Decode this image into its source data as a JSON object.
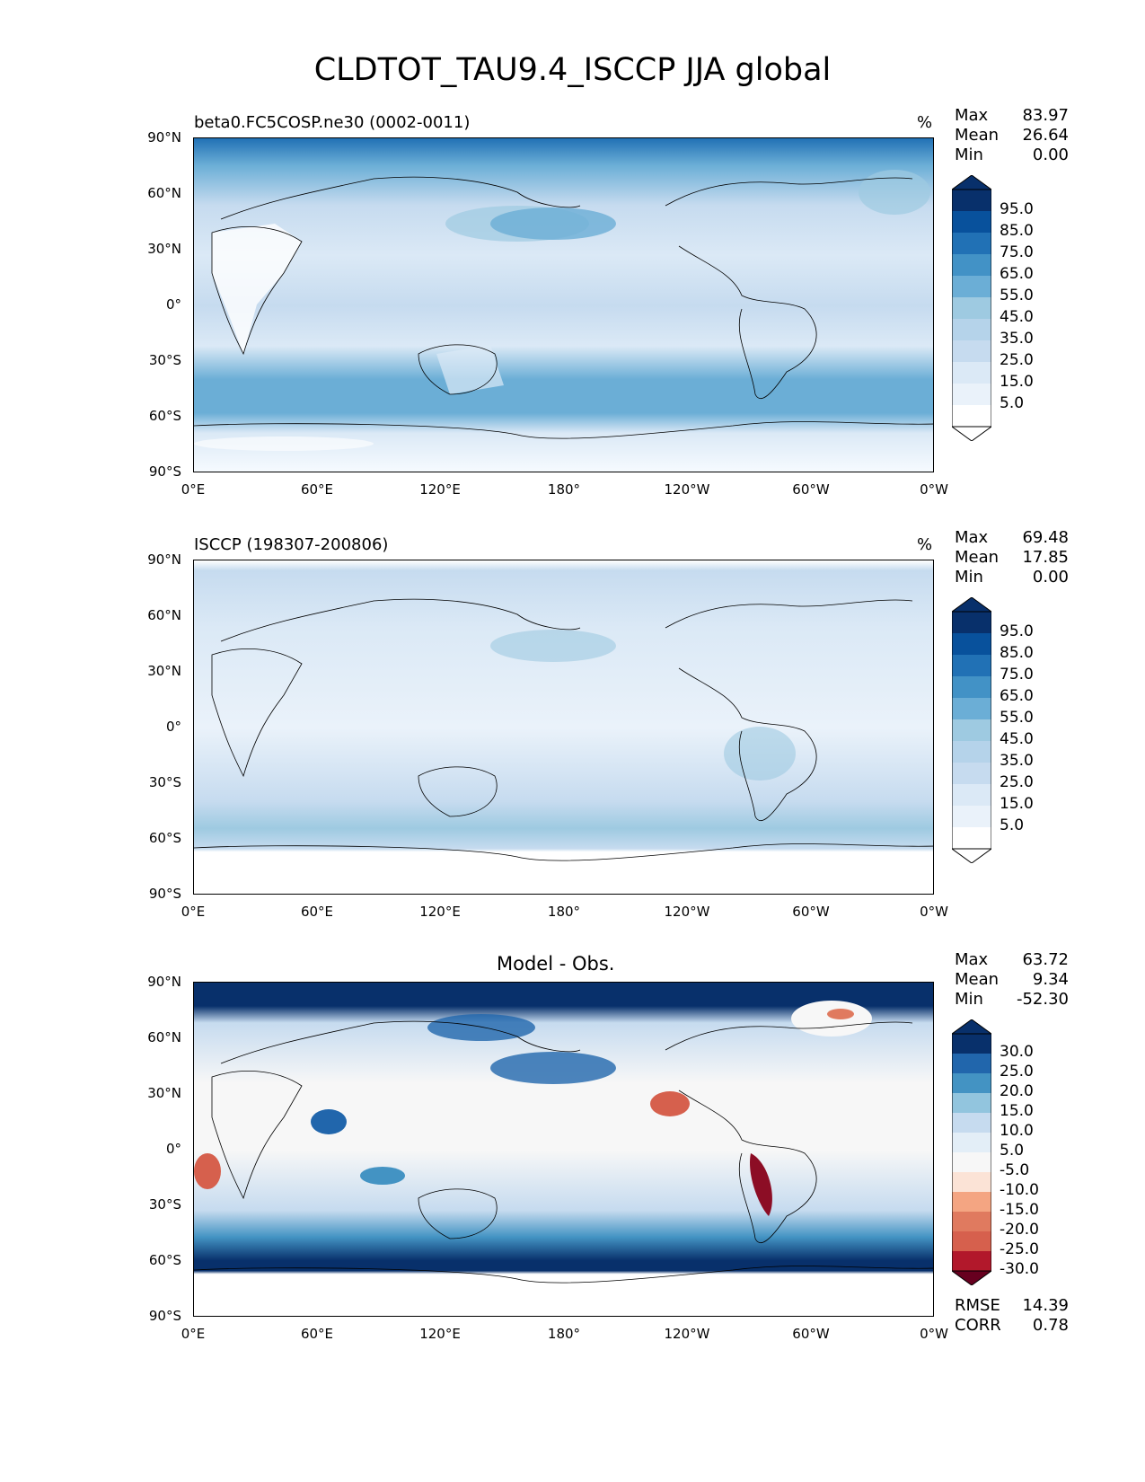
{
  "title": "CLDTOT_TAU9.4_ISCCP JJA global",
  "lat_ticks": [
    "90°N",
    "60°N",
    "30°N",
    "0°",
    "30°S",
    "60°S",
    "90°S"
  ],
  "lon_ticks": [
    "0°E",
    "60°E",
    "120°E",
    "180°",
    "120°W",
    "60°W",
    "0°W"
  ],
  "panels": [
    {
      "label_left": "beta0.FC5COSP.ne30 (0002-0011)",
      "label_right": "%",
      "label_center": "",
      "stats": {
        "max_label": "Max",
        "max": "83.97",
        "mean_label": "Mean",
        "mean": "26.64",
        "min_label": "Min",
        "min": "0.00"
      },
      "colorbar_labels": [
        "95.0",
        "85.0",
        "75.0",
        "65.0",
        "55.0",
        "45.0",
        "35.0",
        "25.0",
        "15.0",
        "5.0"
      ],
      "colorbar_colors": [
        "#08306b",
        "#08519c",
        "#2171b5",
        "#4292c6",
        "#6baed6",
        "#9ecae1",
        "#b5d3ea",
        "#c6dbef",
        "#dbe9f6",
        "#eaf2fa",
        "#f7fbff",
        "#ffffff"
      ]
    },
    {
      "label_left": "ISCCP (198307-200806)",
      "label_right": "%",
      "label_center": "",
      "stats": {
        "max_label": "Max",
        "max": "69.48",
        "mean_label": "Mean",
        "mean": "17.85",
        "min_label": "Min",
        "min": "0.00"
      },
      "colorbar_labels": [
        "95.0",
        "85.0",
        "75.0",
        "65.0",
        "55.0",
        "45.0",
        "35.0",
        "25.0",
        "15.0",
        "5.0"
      ],
      "colorbar_colors": [
        "#08306b",
        "#08519c",
        "#2171b5",
        "#4292c6",
        "#6baed6",
        "#9ecae1",
        "#b5d3ea",
        "#c6dbef",
        "#dbe9f6",
        "#eaf2fa",
        "#f7fbff",
        "#ffffff"
      ]
    },
    {
      "label_left": "",
      "label_right": "",
      "label_center": "Model - Obs.",
      "stats": {
        "max_label": "Max",
        "max": "63.72",
        "mean_label": "Mean",
        "mean": "9.34",
        "min_label": "Min",
        "min": "-52.30"
      },
      "colorbar_labels": [
        "30.0",
        "25.0",
        "20.0",
        "15.0",
        "10.0",
        "5.0",
        "-5.0",
        "-10.0",
        "-15.0",
        "-20.0",
        "-25.0",
        "-30.0"
      ],
      "colorbar_colors": [
        "#08306b",
        "#2166ac",
        "#4393c3",
        "#92c5de",
        "#c6dbef",
        "#e3eef7",
        "#f7f7f7",
        "#fbe3d6",
        "#f4a582",
        "#e07a5f",
        "#d6604d",
        "#b2182b",
        "#8c0d25",
        "#67001f"
      ],
      "metrics": {
        "rmse_label": "RMSE",
        "rmse": "14.39",
        "corr_label": "CORR",
        "corr": "0.78"
      }
    }
  ]
}
